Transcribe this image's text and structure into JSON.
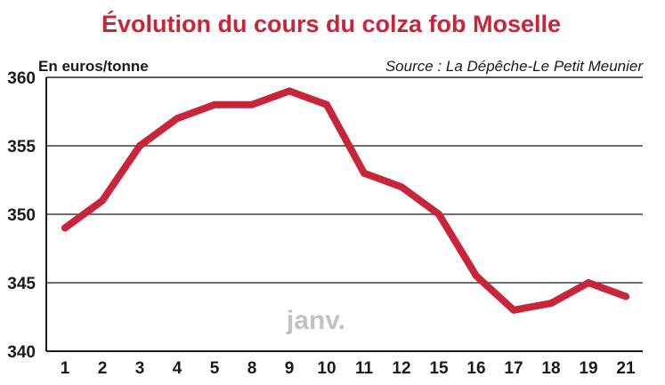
{
  "chart_data": {
    "type": "line",
    "title": "Évolution du cours du colza fob Moselle",
    "ylabel": "En euros/tonne",
    "source": "Source : La Dépêche-Le Petit Meunier",
    "annotation": "janv.",
    "categories": [
      "1",
      "2",
      "3",
      "4",
      "5",
      "8",
      "9",
      "10",
      "11",
      "12",
      "15",
      "16",
      "17",
      "18",
      "19",
      "21"
    ],
    "series": [
      {
        "values": [
          349,
          351,
          355,
          357,
          358,
          358,
          359,
          358,
          353,
          352,
          350,
          345.5,
          343,
          343.5,
          345,
          344
        ]
      }
    ],
    "ylim": [
      340,
      360
    ],
    "yticks": [
      "360",
      "355",
      "350",
      "345",
      "340"
    ],
    "grid": true,
    "line_color": "#c8243a",
    "title_color": "#c8243a"
  }
}
